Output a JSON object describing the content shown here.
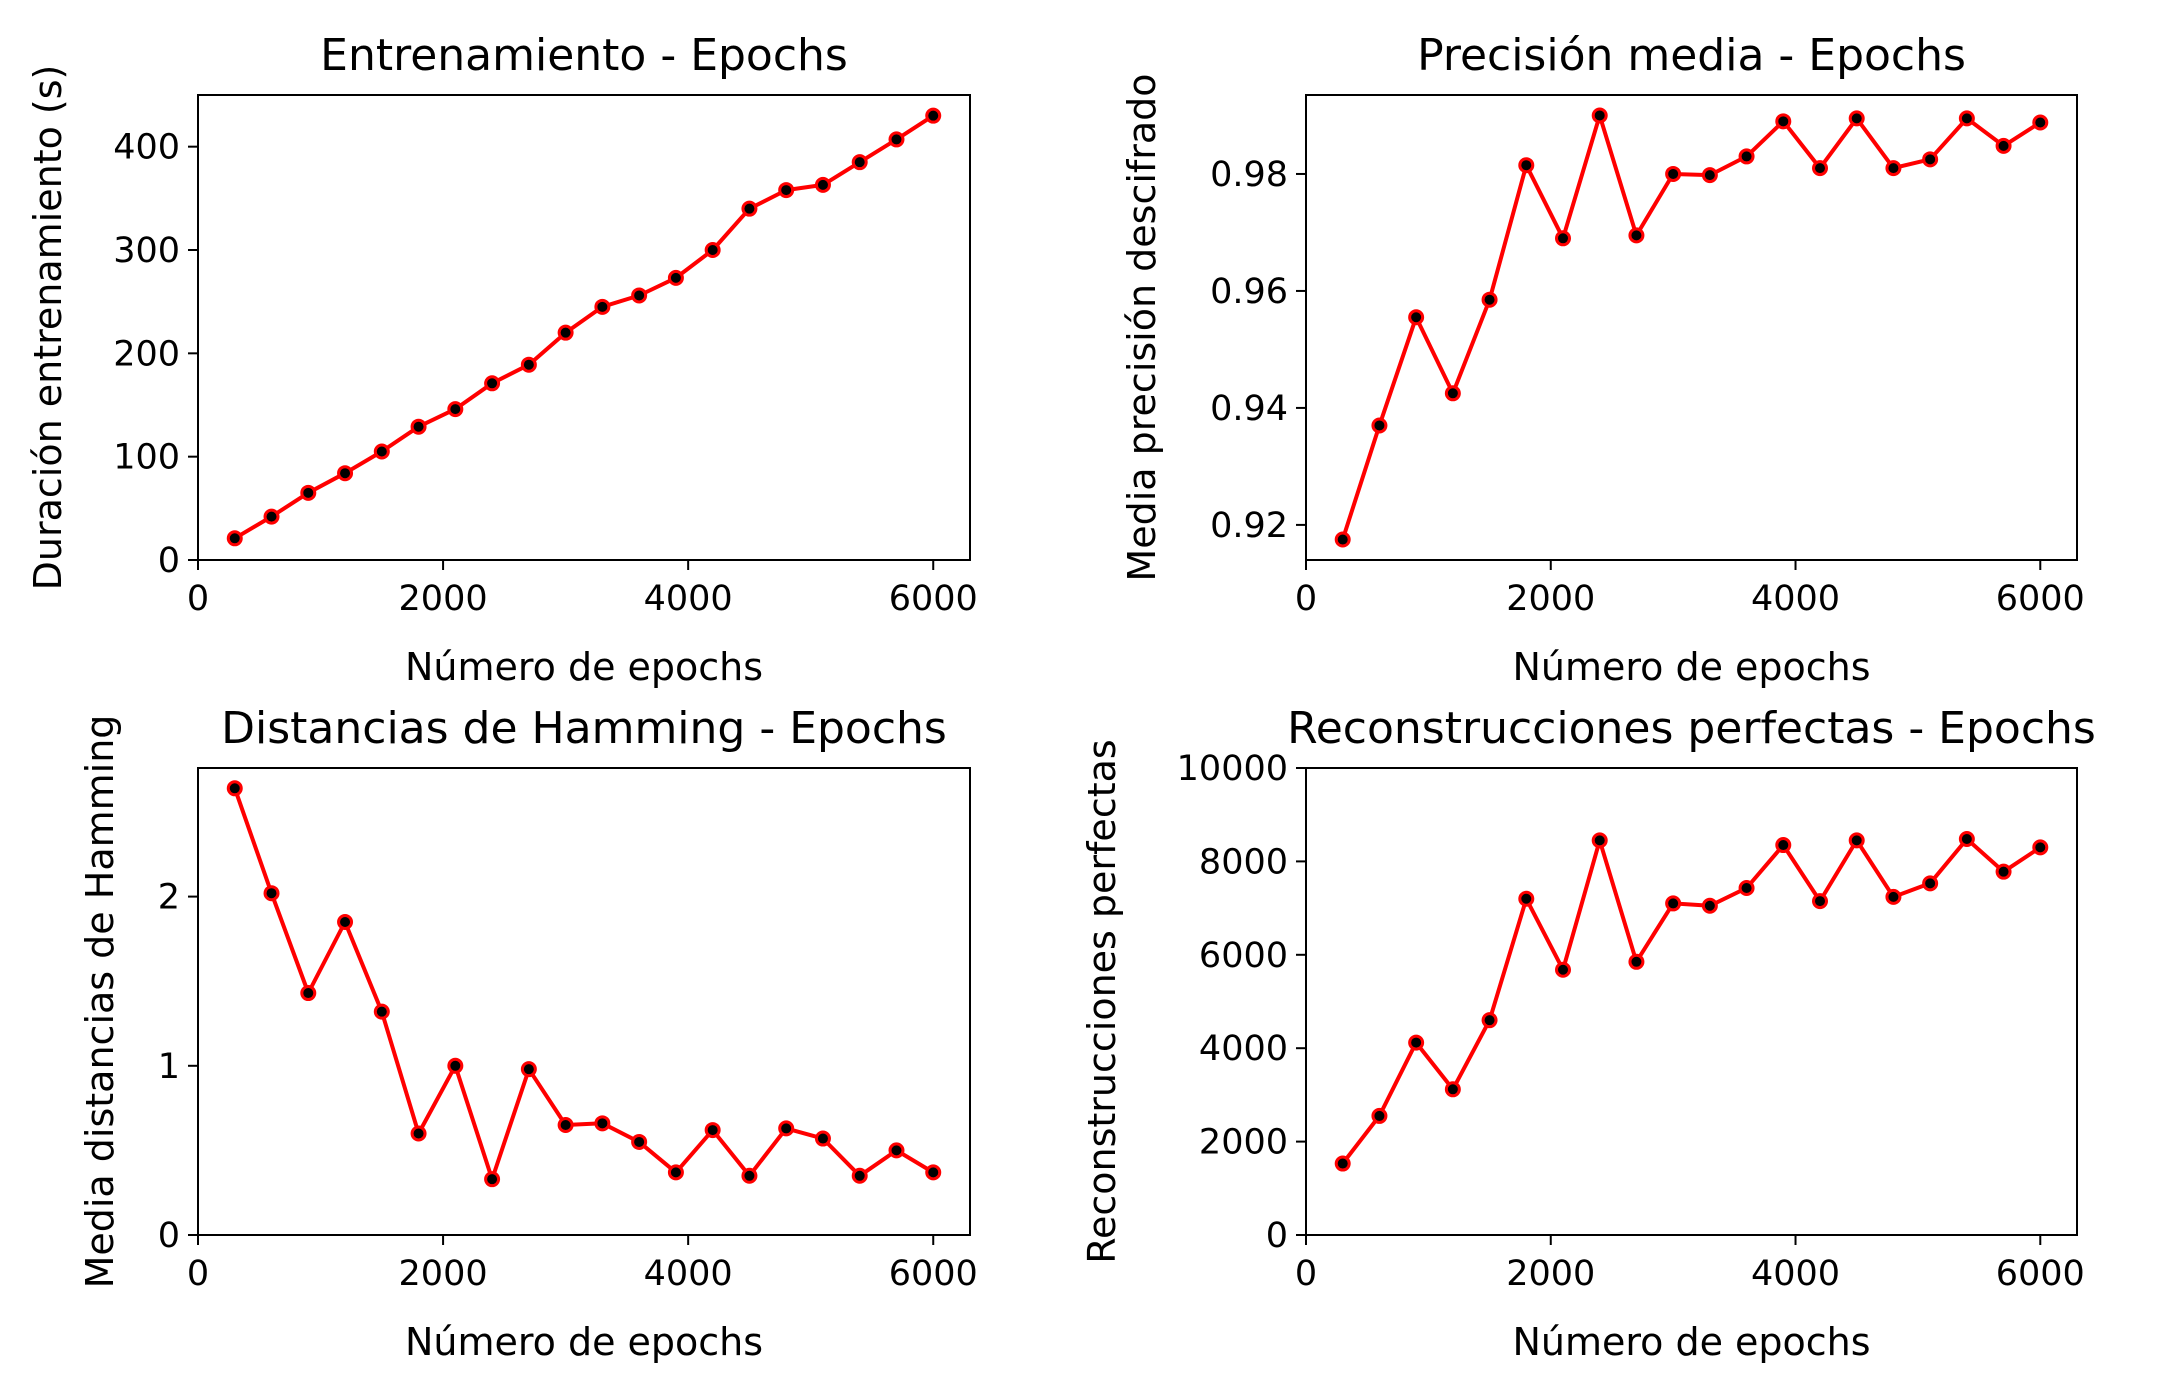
{
  "chart_data": [
    {
      "type": "line",
      "title": "Entrenamiento - Epochs",
      "xlabel": "Número de epochs",
      "ylabel": "Duración entrenamiento (s)",
      "xlim": [
        0,
        6300
      ],
      "ylim": [
        0,
        450
      ],
      "xticks": [
        0,
        2000,
        4000,
        6000
      ],
      "xtick_labels": [
        "0",
        "2000",
        "4000",
        "6000"
      ],
      "yticks": [
        0,
        100,
        200,
        300,
        400
      ],
      "ytick_labels": [
        "0",
        "100",
        "200",
        "300",
        "400"
      ],
      "grid": false,
      "line_color": "#ff0000",
      "marker_color": "#000000",
      "x": [
        300,
        600,
        900,
        1200,
        1500,
        1800,
        2100,
        2400,
        2700,
        3000,
        3300,
        3600,
        3900,
        4200,
        4500,
        4800,
        5100,
        5400,
        5700,
        6000
      ],
      "y": [
        21,
        42,
        65,
        84,
        105,
        129,
        146,
        171,
        189,
        220,
        245,
        256,
        273,
        300,
        340,
        358,
        363,
        385,
        407,
        430
      ]
    },
    {
      "type": "line",
      "title": "Precisión media - Epochs",
      "xlabel": "Número de epochs",
      "ylabel": "Media precisión descifrado",
      "xlim": [
        0,
        6300
      ],
      "ylim": [
        0.914,
        0.9935
      ],
      "xticks": [
        0,
        2000,
        4000,
        6000
      ],
      "xtick_labels": [
        "0",
        "2000",
        "4000",
        "6000"
      ],
      "yticks": [
        0.92,
        0.94,
        0.96,
        0.98
      ],
      "ytick_labels": [
        "0.92",
        "0.94",
        "0.96",
        "0.98"
      ],
      "grid": false,
      "line_color": "#ff0000",
      "marker_color": "#000000",
      "x": [
        300,
        600,
        900,
        1200,
        1500,
        1800,
        2100,
        2400,
        2700,
        3000,
        3300,
        3600,
        3900,
        4200,
        4500,
        4800,
        5100,
        5400,
        5700,
        6000
      ],
      "y": [
        0.9175,
        0.937,
        0.9555,
        0.9425,
        0.9585,
        0.9815,
        0.969,
        0.99,
        0.9695,
        0.98,
        0.9798,
        0.983,
        0.989,
        0.981,
        0.9895,
        0.981,
        0.9825,
        0.9895,
        0.9848,
        0.9888
      ]
    },
    {
      "type": "line",
      "title": "Distancias de Hamming - Epochs",
      "xlabel": "Número de epochs",
      "ylabel": "Media distancias de Hamming",
      "xlim": [
        0,
        6300
      ],
      "ylim": [
        0,
        2.76
      ],
      "xticks": [
        0,
        2000,
        4000,
        6000
      ],
      "xtick_labels": [
        "0",
        "2000",
        "4000",
        "6000"
      ],
      "yticks": [
        0,
        1,
        2
      ],
      "ytick_labels": [
        "0",
        "1",
        "2"
      ],
      "grid": false,
      "line_color": "#ff0000",
      "marker_color": "#000000",
      "x": [
        300,
        600,
        900,
        1200,
        1500,
        1800,
        2100,
        2400,
        2700,
        3000,
        3300,
        3600,
        3900,
        4200,
        4500,
        4800,
        5100,
        5400,
        5700,
        6000
      ],
      "y": [
        2.64,
        2.02,
        1.43,
        1.85,
        1.32,
        0.6,
        1.0,
        0.33,
        0.98,
        0.65,
        0.66,
        0.55,
        0.37,
        0.62,
        0.35,
        0.63,
        0.57,
        0.35,
        0.5,
        0.37
      ]
    },
    {
      "type": "line",
      "title": "Reconstrucciones perfectas - Epochs",
      "xlabel": "Número de epochs",
      "ylabel": "Reconstrucciones perfectas",
      "xlim": [
        0,
        6300
      ],
      "ylim": [
        0,
        10000
      ],
      "xticks": [
        0,
        2000,
        4000,
        6000
      ],
      "xtick_labels": [
        "0",
        "2000",
        "4000",
        "6000"
      ],
      "yticks": [
        0,
        2000,
        4000,
        6000,
        8000,
        10000
      ],
      "ytick_labels": [
        "0",
        "2000",
        "4000",
        "6000",
        "8000",
        "10000"
      ],
      "grid": false,
      "line_color": "#ff0000",
      "marker_color": "#000000",
      "x": [
        300,
        600,
        900,
        1200,
        1500,
        1800,
        2100,
        2400,
        2700,
        3000,
        3300,
        3600,
        3900,
        4200,
        4500,
        4800,
        5100,
        5400,
        5700,
        6000
      ],
      "y": [
        1530,
        2550,
        4120,
        3120,
        4600,
        7200,
        5680,
        8450,
        5850,
        7100,
        7050,
        7430,
        8350,
        7150,
        8450,
        7240,
        7530,
        8480,
        7780,
        8300
      ]
    }
  ]
}
